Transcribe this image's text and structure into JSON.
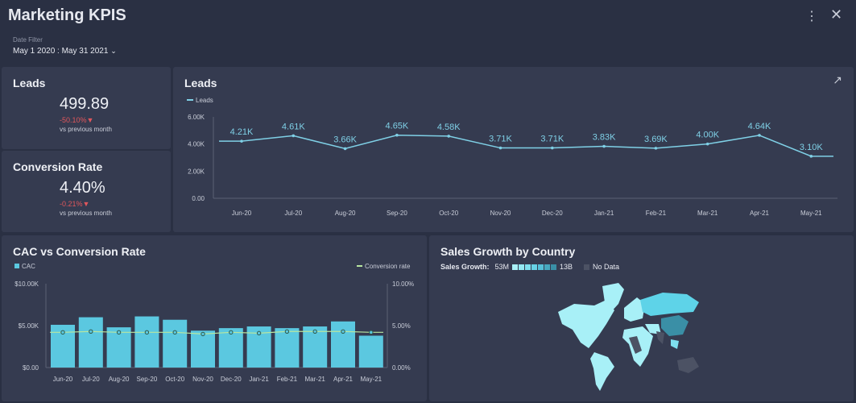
{
  "header": {
    "title": "Marketing KPIS",
    "menu_icon": "more-vertical-icon",
    "close_icon": "close-icon"
  },
  "date_filter": {
    "label": "Date Filter",
    "value": "May 1 2020 : May 31 2021"
  },
  "kpis": [
    {
      "title": "Leads",
      "value": "499.89",
      "delta": "-50.10%",
      "sub": "vs previous month"
    },
    {
      "title": "Conversion Rate",
      "value": "4.40%",
      "delta": "-0.21%",
      "sub": "vs previous month"
    }
  ],
  "colors": {
    "accent": "#5bc8e0",
    "line": "#7fd0e6",
    "negative": "#e0575c",
    "conv_line": "#b8e6a0",
    "panel": "#353b50",
    "background": "#2a3043"
  },
  "chart_data": [
    {
      "type": "line",
      "title": "Leads",
      "legend": [
        "Leads"
      ],
      "ylim": [
        0,
        6000
      ],
      "yticks": [
        "0.00",
        "2.00K",
        "4.00K",
        "6.00K"
      ],
      "categories": [
        "Jun-20",
        "Jul-20",
        "Aug-20",
        "Sep-20",
        "Oct-20",
        "Nov-20",
        "Dec-20",
        "Jan-21",
        "Feb-21",
        "Mar-21",
        "Apr-21",
        "May-21"
      ],
      "values": [
        4210,
        4610,
        3660,
        4650,
        4580,
        3710,
        3710,
        3830,
        3690,
        4000,
        4640,
        3100
      ],
      "labels": [
        "4.21K",
        "4.61K",
        "3.66K",
        "4.65K",
        "4.58K",
        "3.71K",
        "3.71K",
        "3.83K",
        "3.69K",
        "4.00K",
        "4.64K",
        "3.10K"
      ]
    },
    {
      "type": "bar",
      "title": "CAC vs Conversion Rate",
      "legend": [
        "CAC",
        "Conversion rate"
      ],
      "categories": [
        "Jun-20",
        "Jul-20",
        "Aug-20",
        "Sep-20",
        "Oct-20",
        "Nov-20",
        "Dec-20",
        "Jan-21",
        "Feb-21",
        "Mar-21",
        "Apr-21",
        "May-21"
      ],
      "yticks_left": [
        "$0.00",
        "$5.00K",
        "$10.00K"
      ],
      "ylim_left": [
        0,
        10000
      ],
      "yticks_right": [
        "0.00%",
        "5.00%",
        "10.00%"
      ],
      "ylim_right": [
        0,
        10
      ],
      "series": [
        {
          "name": "CAC",
          "values": [
            5100,
            6000,
            4800,
            6100,
            5700,
            4400,
            4700,
            4900,
            4700,
            4900,
            5500,
            3800
          ]
        },
        {
          "name": "Conversion rate",
          "values": [
            4.2,
            4.3,
            4.2,
            4.2,
            4.2,
            4.0,
            4.2,
            4.1,
            4.3,
            4.3,
            4.3,
            4.2
          ]
        }
      ]
    }
  ],
  "map": {
    "title": "Sales Growth by Country",
    "legend_label": "Sales Growth:",
    "min": "53M",
    "max": "13B",
    "no_data": "No Data",
    "scale": [
      "#a8f0f7",
      "#93e8f2",
      "#7edfee",
      "#68d2e6",
      "#56c0d8",
      "#46a9c0",
      "#3a8fa6"
    ],
    "no_data_color": "#4c5264"
  },
  "expand_icon": "expand-arrow-icon"
}
